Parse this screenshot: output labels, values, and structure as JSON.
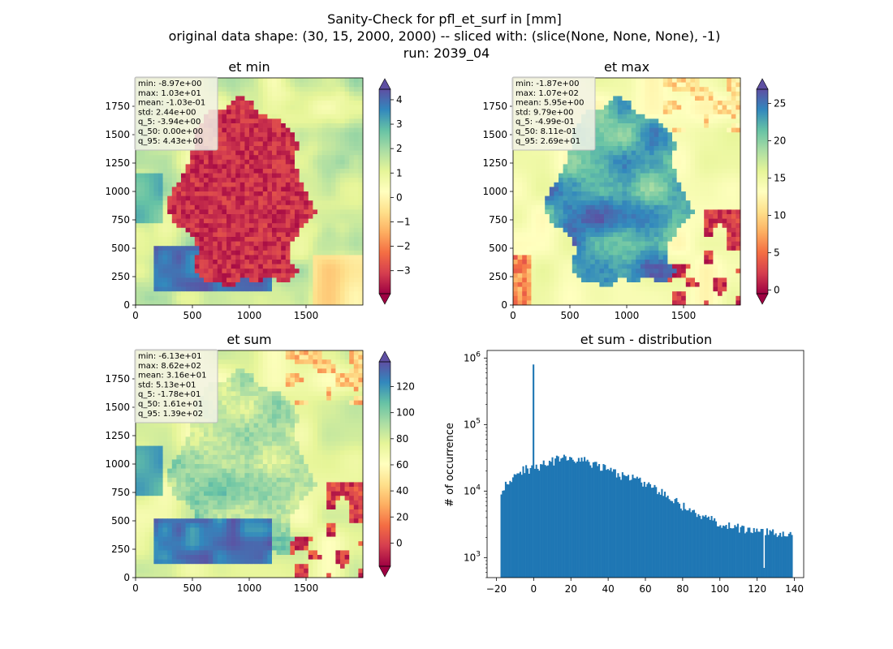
{
  "figure": {
    "title_lines": [
      "Sanity-Check for pfl_et_surf in [mm]",
      "original data shape: (30, 15, 2000, 2000) -- sliced with: (slice(None, None, None), -1)",
      "run: 2039_04"
    ]
  },
  "colors": {
    "histogram_bar": "#1f77b4",
    "colormap_stops": [
      "#9e0142",
      "#d53e4f",
      "#f46d43",
      "#fdae61",
      "#fee08b",
      "#ffffbf",
      "#e6f598",
      "#abdda4",
      "#66c2a5",
      "#3288bd",
      "#5e4fa2"
    ],
    "stats_box_bg": "#f2f2e6",
    "stats_box_border": "#bdbdbd"
  },
  "chart_data": [
    {
      "type": "heatmap",
      "id": "et_min",
      "title": "et min",
      "colormap": "Spectral",
      "x_ticks": [
        "0",
        "500",
        "1000",
        "1500"
      ],
      "y_ticks": [
        "0",
        "250",
        "500",
        "750",
        "1000",
        "1250",
        "1500",
        "1750"
      ],
      "xlim": [
        0,
        2000
      ],
      "ylim": [
        0,
        2000
      ],
      "colorbar": {
        "range": [
          -3.94,
          4.43
        ],
        "extend": "both",
        "ticks": [
          "4",
          "3",
          "2",
          "1",
          "0",
          "−1",
          "−2",
          "−3"
        ],
        "tick_values": [
          4,
          3,
          2,
          1,
          0,
          -1,
          -2,
          -3
        ]
      },
      "stats": [
        "min: -8.97e+00",
        "max: 1.03e+01",
        "mean: -1.03e-01",
        "std: 2.44e+00",
        "q_5: -3.94e+00",
        "q_50: 0.00e+00",
        "q_95: 4.43e+00"
      ]
    },
    {
      "type": "heatmap",
      "id": "et_max",
      "title": "et max",
      "colormap": "Spectral",
      "x_ticks": [
        "0",
        "500",
        "1000",
        "1500"
      ],
      "y_ticks": [
        "0",
        "250",
        "500",
        "750",
        "1000",
        "1250",
        "1500",
        "1750"
      ],
      "xlim": [
        0,
        2000
      ],
      "ylim": [
        0,
        2000
      ],
      "colorbar": {
        "range": [
          -0.499,
          26.9
        ],
        "extend": "both",
        "ticks": [
          "25",
          "20",
          "15",
          "10",
          "5",
          "0"
        ],
        "tick_values": [
          25,
          20,
          15,
          10,
          5,
          0
        ]
      },
      "stats": [
        "min: -1.87e+00",
        "max: 1.07e+02",
        "mean: 5.95e+00",
        "std: 9.79e+00",
        "q_5: -4.99e-01",
        "q_50: 8.11e-01",
        "q_95: 2.69e+01"
      ]
    },
    {
      "type": "heatmap",
      "id": "et_sum",
      "title": "et sum",
      "colormap": "Spectral",
      "x_ticks": [
        "0",
        "500",
        "1000",
        "1500"
      ],
      "y_ticks": [
        "0",
        "250",
        "500",
        "750",
        "1000",
        "1250",
        "1500",
        "1750"
      ],
      "xlim": [
        0,
        2000
      ],
      "ylim": [
        0,
        2000
      ],
      "colorbar": {
        "range": [
          -17.8,
          139
        ],
        "extend": "both",
        "ticks": [
          "120",
          "100",
          "80",
          "60",
          "40",
          "20",
          "0"
        ],
        "tick_values": [
          120,
          100,
          80,
          60,
          40,
          20,
          0
        ]
      },
      "stats": [
        "min: -6.13e+01",
        "max: 8.62e+02",
        "mean: 3.16e+01",
        "std: 5.13e+01",
        "q_5: -1.78e+01",
        "q_50: 1.61e+01",
        "q_95: 1.39e+02"
      ]
    },
    {
      "type": "bar",
      "id": "et_sum_distribution",
      "title": "et sum - distribution",
      "ylabel": "# of occurrence",
      "yscale": "log",
      "xlim": [
        -25,
        145
      ],
      "ylim": [
        500,
        1300000
      ],
      "x_ticks": [
        "−20",
        "0",
        "20",
        "40",
        "60",
        "80",
        "100",
        "120",
        "140"
      ],
      "x_tick_values": [
        -20,
        0,
        20,
        40,
        60,
        80,
        100,
        120,
        140
      ],
      "y_ticks": [
        {
          "base": "10",
          "exp": "3",
          "value": 1000
        },
        {
          "base": "10",
          "exp": "4",
          "value": 10000
        },
        {
          "base": "10",
          "exp": "5",
          "value": 100000
        },
        {
          "base": "10",
          "exp": "6",
          "value": 1000000
        }
      ],
      "bin_range": [
        -17.8,
        139
      ],
      "bin_count": 200,
      "counts_every_5_units": [
        {
          "x": -18,
          "y": 10000
        },
        {
          "x": -15,
          "y": 13000
        },
        {
          "x": -10,
          "y": 18000
        },
        {
          "x": -5,
          "y": 21000
        },
        {
          "x": 0,
          "y": 22000
        },
        {
          "x": 5,
          "y": 25000
        },
        {
          "x": 10,
          "y": 28000
        },
        {
          "x": 15,
          "y": 31000
        },
        {
          "x": 20,
          "y": 30000
        },
        {
          "x": 25,
          "y": 29000
        },
        {
          "x": 30,
          "y": 27000
        },
        {
          "x": 35,
          "y": 24000
        },
        {
          "x": 40,
          "y": 21000
        },
        {
          "x": 45,
          "y": 18000
        },
        {
          "x": 50,
          "y": 16000
        },
        {
          "x": 55,
          "y": 15000
        },
        {
          "x": 60,
          "y": 13000
        },
        {
          "x": 65,
          "y": 11000
        },
        {
          "x": 70,
          "y": 9000
        },
        {
          "x": 75,
          "y": 7500
        },
        {
          "x": 80,
          "y": 6000
        },
        {
          "x": 85,
          "y": 5000
        },
        {
          "x": 90,
          "y": 4200
        },
        {
          "x": 95,
          "y": 3700
        },
        {
          "x": 100,
          "y": 3300
        },
        {
          "x": 105,
          "y": 3000
        },
        {
          "x": 110,
          "y": 2800
        },
        {
          "x": 115,
          "y": 2600
        },
        {
          "x": 120,
          "y": 2500
        },
        {
          "x": 125,
          "y": 2400
        },
        {
          "x": 130,
          "y": 2300
        },
        {
          "x": 135,
          "y": 2200
        },
        {
          "x": 139,
          "y": 2100
        }
      ],
      "spike": {
        "x": 0,
        "y": 800000
      },
      "dip": {
        "x": 124,
        "y": 700
      }
    }
  ]
}
